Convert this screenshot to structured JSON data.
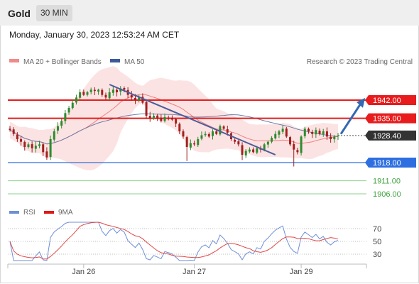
{
  "header": {
    "asset": "Gold",
    "timeframe": "30 MIN",
    "datetime": "Monday, January 30, 2023 12:53:24 AM CET"
  },
  "legend": {
    "ma20": "MA 20 + Bollinger Bands",
    "ma50": "MA 50",
    "research": "Research © 2023 Trading Central",
    "rsi": "RSI",
    "rsi_ma": "9MA"
  },
  "colors": {
    "resistance": "#e81c1c",
    "support": "#2d6fe0",
    "target": "#3fa33f",
    "last": "#333333",
    "bull": "#2e8b2e",
    "bear": "#a31f1f",
    "band": "#fbd9d9",
    "ma20": "#f07e7e",
    "ma50": "#6b7fa8",
    "rsi": "#6d8fd8",
    "rsi_ma": "#e04848",
    "arrow": "#3468b0",
    "trendline": "#4b5d9c"
  },
  "chart_data": [
    {
      "type": "candlestick",
      "price_range": [
        1900,
        1952
      ],
      "x_ticks": [
        {
          "label": "Jan 26",
          "index": 20
        },
        {
          "label": "Jan 27",
          "index": 50
        },
        {
          "label": "Jan 29",
          "index": 79
        }
      ],
      "levels": [
        {
          "label": "1942.00",
          "value": 1942.0,
          "kind": "resistance"
        },
        {
          "label": "1935.00",
          "value": 1935.0,
          "kind": "resistance"
        },
        {
          "label": "1928.40",
          "value": 1928.4,
          "kind": "last"
        },
        {
          "label": "1918.00",
          "value": 1918.0,
          "kind": "support"
        },
        {
          "label": "1911.00",
          "value": 1911.0,
          "kind": "target"
        },
        {
          "label": "1906.00",
          "value": 1906.0,
          "kind": "target"
        }
      ],
      "closes": [
        1930.5,
        1929.0,
        1927.0,
        1926.0,
        1924.0,
        1925.0,
        1923.5,
        1924.5,
        1925.0,
        1922.0,
        1920.0,
        1927.0,
        1930.0,
        1932.0,
        1934.0,
        1937.0,
        1939.0,
        1941.0,
        1943.0,
        1945.0,
        1944.0,
        1945.0,
        1946.0,
        1945.5,
        1946.0,
        1944.0,
        1943.0,
        1945.0,
        1946.0,
        1945.0,
        1946.5,
        1946.0,
        1944.0,
        1943.0,
        1942.0,
        1943.0,
        1941.0,
        1936.0,
        1935.0,
        1936.0,
        1935.0,
        1934.0,
        1935.5,
        1935.0,
        1934.5,
        1933.0,
        1930.0,
        1928.0,
        1924.0,
        1925.5,
        1925.0,
        1927.0,
        1928.5,
        1929.0,
        1928.0,
        1930.0,
        1929.0,
        1932.0,
        1931.0,
        1929.5,
        1927.0,
        1926.0,
        1925.0,
        1921.0,
        1922.5,
        1923.0,
        1922.0,
        1923.5,
        1923.0,
        1925.0,
        1926.0,
        1927.5,
        1929.0,
        1930.0,
        1931.0,
        1928.0,
        1925.0,
        1923.0,
        1922.0,
        1928.0,
        1931.0,
        1930.0,
        1929.0,
        1930.5,
        1929.0,
        1930.0,
        1928.0,
        1927.0,
        1928.0,
        1928.4
      ],
      "series": [
        {
          "name": "MA 20 + Bollinger Bands"
        },
        {
          "name": "MA 50"
        }
      ]
    },
    {
      "type": "line",
      "name": "RSI",
      "y_ticks": [
        70,
        50,
        30
      ],
      "series": [
        {
          "name": "RSI"
        },
        {
          "name": "9MA"
        }
      ]
    }
  ]
}
